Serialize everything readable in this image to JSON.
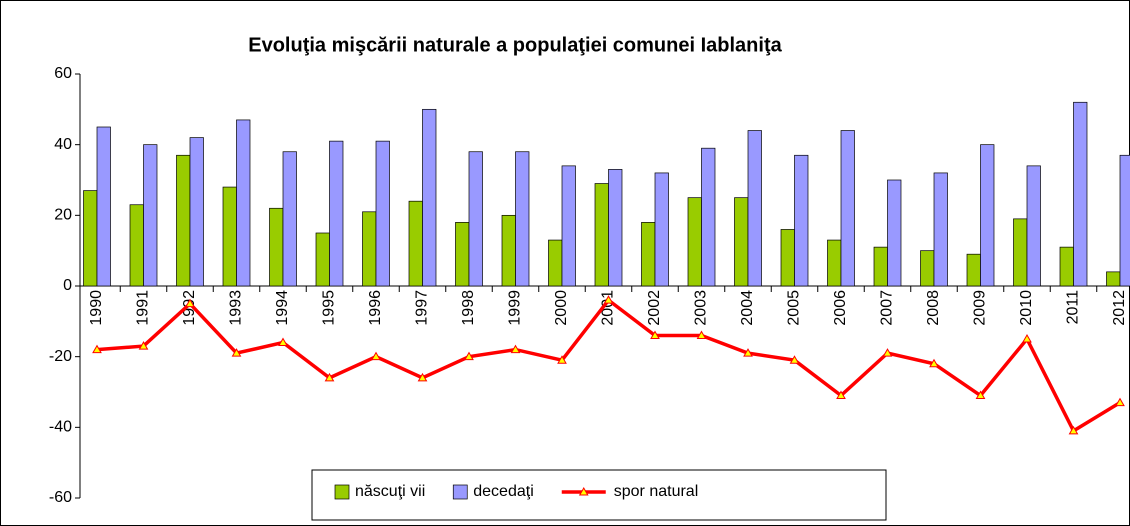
{
  "chart_data": {
    "type": "bar-line",
    "title": "Evoluţia mişcării naturale a populaţiei comunei Iablaniţa",
    "categories": [
      "1990",
      "1991",
      "1992",
      "1993",
      "1994",
      "1995",
      "1996",
      "1997",
      "1998",
      "1999",
      "2000",
      "2001",
      "2002",
      "2003",
      "2004",
      "2005",
      "2006",
      "2007",
      "2008",
      "2009",
      "2010",
      "2011",
      "2012"
    ],
    "series": [
      {
        "name": "născuţi vii",
        "type": "bar",
        "color": "#99cc00",
        "values": [
          27,
          23,
          37,
          28,
          22,
          15,
          21,
          24,
          18,
          20,
          13,
          29,
          18,
          25,
          25,
          16,
          13,
          11,
          10,
          9,
          19,
          11,
          4
        ]
      },
      {
        "name": "decedaţi",
        "type": "bar",
        "color": "#9999ff",
        "values": [
          45,
          40,
          42,
          47,
          38,
          41,
          41,
          50,
          38,
          38,
          34,
          33,
          32,
          39,
          44,
          37,
          44,
          30,
          32,
          40,
          34,
          52,
          37
        ]
      },
      {
        "name": "spor natural",
        "type": "line",
        "color": "#ff0000",
        "values": [
          -18,
          -17,
          -5,
          -19,
          -16,
          -26,
          -20,
          -26,
          -20,
          -18,
          -21,
          -4,
          -14,
          -14,
          -19,
          -21,
          -31,
          -19,
          -22,
          -31,
          -15,
          -41,
          -33
        ]
      }
    ],
    "ylim": [
      -60,
      60
    ],
    "yticks": [
      -60,
      -40,
      -20,
      0,
      20,
      40,
      60
    ],
    "grid": false,
    "legend": "bottom"
  }
}
